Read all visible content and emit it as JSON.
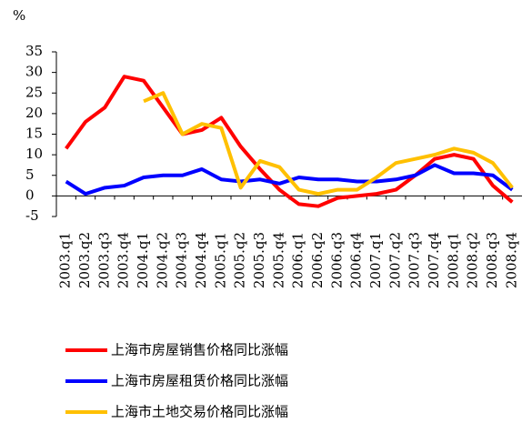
{
  "chart_data": {
    "type": "line",
    "unit": "%",
    "categories": [
      "2003.q1",
      "2003.q2",
      "2003.q3",
      "2003.q4",
      "2004.q1",
      "2004.q2",
      "2004.q3",
      "2004.q4",
      "2005.q1",
      "2005.q2",
      "2005.q3",
      "2005.q4",
      "2006.q1",
      "2006.q2",
      "2006.q3",
      "2006.q4",
      "2007.q1",
      "2007.q2",
      "2007.q3",
      "2007.q4",
      "2008.q1",
      "2008.q2",
      "2008.q3",
      "2008.q4"
    ],
    "series": [
      {
        "name": "上海市房屋销售价格同比涨幅",
        "color": "#ff0000",
        "values": [
          11.5,
          18,
          21.5,
          29,
          28,
          21.5,
          15,
          16,
          19,
          12,
          6.5,
          1.5,
          -2,
          -2.5,
          -0.5,
          0,
          0.5,
          1.5,
          5,
          9,
          10,
          9,
          2.5,
          -1.5
        ]
      },
      {
        "name": "上海市房屋租赁价格同比涨幅",
        "color": "#0000ff",
        "values": [
          3.5,
          0.5,
          2,
          2.5,
          4.5,
          5,
          5,
          6.5,
          4,
          3.5,
          4,
          3,
          4.5,
          4,
          4,
          3.5,
          3.5,
          4,
          5,
          7.5,
          5.5,
          5.5,
          5,
          1.5
        ]
      },
      {
        "name": "上海市土地交易价格同比涨幅",
        "color": "#ffc000",
        "values": [
          null,
          null,
          null,
          null,
          23,
          25,
          15,
          17.5,
          16.5,
          2,
          8.5,
          7,
          1.5,
          0.5,
          1.5,
          1.5,
          4.5,
          8,
          9,
          10,
          11.5,
          10.5,
          8,
          2
        ]
      }
    ],
    "ylim": [
      -5,
      35
    ],
    "yticks": [
      -5,
      0,
      5,
      10,
      15,
      20,
      25,
      30,
      35
    ]
  }
}
